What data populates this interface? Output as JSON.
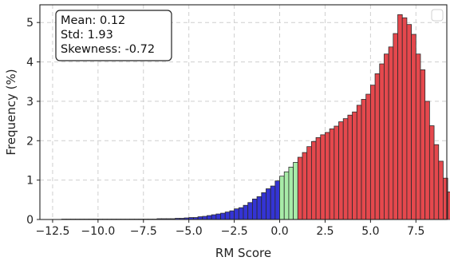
{
  "chart_data": {
    "type": "bar",
    "xlabel": "RM Score",
    "ylabel": "Frequency (%)",
    "xlim": [
      -13.2,
      9.2
    ],
    "ylim": [
      0,
      5.45
    ],
    "xticks": [
      -12.5,
      -10.0,
      -7.5,
      -5.0,
      -2.5,
      0.0,
      2.5,
      5.0,
      7.5
    ],
    "xtick_labels": [
      "−12.5",
      "−10.0",
      "−7.5",
      "−5.0",
      "−2.5",
      "0.0",
      "2.5",
      "5.0",
      "7.5"
    ],
    "yticks": [
      0,
      1,
      2,
      3,
      4,
      5
    ],
    "ytick_labels": [
      "0",
      "1",
      "2",
      "3",
      "4",
      "5"
    ],
    "grid": true,
    "legend": "top-right",
    "stats_box": {
      "placement": "top-left",
      "lines": [
        "Mean: 0.12",
        "Std: 1.93",
        "Skewness: -0.72"
      ]
    },
    "bin_width": 0.25,
    "bin_start": -12.0,
    "color_rules": [
      {
        "max_x": 0.0,
        "color": "#3434d4"
      },
      {
        "max_x": 1.0,
        "color": "#a8eca8"
      },
      {
        "max_x": 99,
        "color": "#e5484d"
      }
    ],
    "values": [
      0.01,
      0.01,
      0.01,
      0.01,
      0.01,
      0.01,
      0.01,
      0.01,
      0.01,
      0.01,
      0.01,
      0.01,
      0.01,
      0.01,
      0.01,
      0.01,
      0.01,
      0.01,
      0.01,
      0.01,
      0.01,
      0.02,
      0.02,
      0.02,
      0.02,
      0.03,
      0.03,
      0.04,
      0.05,
      0.05,
      0.07,
      0.08,
      0.1,
      0.12,
      0.14,
      0.16,
      0.19,
      0.22,
      0.27,
      0.3,
      0.36,
      0.43,
      0.52,
      0.58,
      0.68,
      0.78,
      0.85,
      0.98,
      1.1,
      1.21,
      1.33,
      1.45,
      1.58,
      1.7,
      1.85,
      1.98,
      2.08,
      2.15,
      2.21,
      2.3,
      2.37,
      2.48,
      2.56,
      2.65,
      2.73,
      2.9,
      3.05,
      3.18,
      3.41,
      3.7,
      3.95,
      4.2,
      4.38,
      4.72,
      5.2,
      5.12,
      4.95,
      4.7,
      4.2,
      3.8,
      3.0,
      2.38,
      1.9,
      1.48,
      1.05,
      0.7,
      0.48,
      0.32,
      0.2,
      0.12,
      0.08,
      0.05,
      0.03,
      0.02,
      0.01,
      0.01,
      0.01,
      0.01,
      0.01,
      0.01,
      0.01,
      0.01,
      0.01,
      0.01,
      0.01,
      0.01,
      0.01,
      0.01,
      0.01,
      0.01,
      0.01,
      0.01
    ]
  }
}
